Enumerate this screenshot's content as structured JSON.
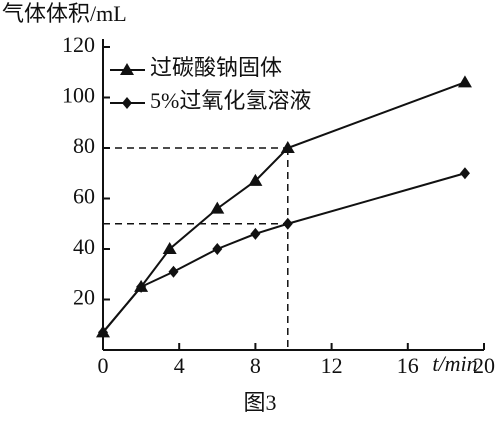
{
  "chart_data": {
    "type": "line",
    "y_label": "气体体积/mL",
    "x_label": "t/min",
    "caption": "图3",
    "xlim": [
      0,
      20
    ],
    "xticks": [
      0,
      4,
      8,
      12,
      16,
      20
    ],
    "ylim": [
      0,
      120
    ],
    "yticks": [
      20,
      40,
      60,
      80,
      100,
      120
    ],
    "series": [
      {
        "name": "过碳酸钠固体",
        "color": "#111111",
        "marker": "triangle",
        "x": [
          0,
          2,
          3.5,
          6,
          8,
          9.7,
          19
        ],
        "values": [
          7,
          25,
          40,
          56,
          67,
          80,
          106
        ]
      },
      {
        "name": "5%过氧化氢溶液",
        "color": "#111111",
        "marker": "diamond",
        "x": [
          0,
          2,
          3.7,
          6,
          8,
          9.7,
          19
        ],
        "values": [
          7,
          25,
          31,
          40,
          46,
          50,
          70
        ]
      }
    ]
  }
}
